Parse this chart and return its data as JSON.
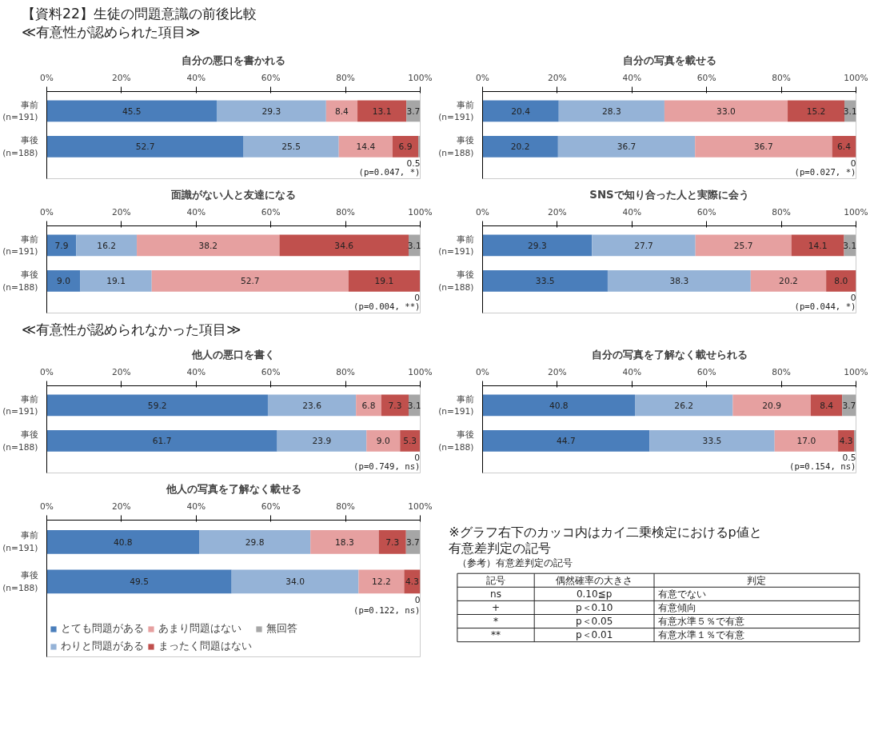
{
  "chart_data": [
    {
      "type": "other",
      "title": "【資料22】生徒の問題意識の前後比較",
      "annotations": [
        "≪有意性が認められた項目≫"
      ]
    },
    {
      "type": "bar",
      "orientation": "horizontal",
      "stacked": true,
      "title": "自分の悪口を書かれる",
      "categories": [
        "事前\n(n=191)",
        "事後\n(n=188)"
      ],
      "xlim": [
        0,
        100
      ],
      "xticks": [
        {
          "value": 0,
          "label": "0%"
        },
        {
          "value": 20,
          "label": "20%"
        },
        {
          "value": 40,
          "label": "40%"
        },
        {
          "value": 60,
          "label": "60%"
        },
        {
          "value": 80,
          "label": "80%"
        },
        {
          "value": 100,
          "label": "100%"
        }
      ],
      "annotations": [
        "(p=0.047, *)"
      ],
      "series": [
        {
          "color": "#4a7ebb",
          "values": [
            45.5,
            52.7
          ],
          "value_labels": [
            "45.5",
            "52.7"
          ]
        },
        {
          "color": "#95b3d7",
          "values": [
            29.3,
            25.5
          ],
          "value_labels": [
            "29.3",
            "25.5"
          ]
        },
        {
          "color": "#e6a0a0",
          "values": [
            8.4,
            14.4
          ],
          "value_labels": [
            "8.4",
            "14.4"
          ]
        },
        {
          "color": "#c0504d",
          "values": [
            13.1,
            6.9
          ],
          "value_labels": [
            "13.1",
            "6.9"
          ]
        },
        {
          "color": "#a6a6a6",
          "values": [
            3.7,
            0.5
          ],
          "value_labels": [
            "3.7",
            "0.5"
          ]
        }
      ]
    },
    {
      "type": "bar",
      "orientation": "horizontal",
      "stacked": true,
      "title": "自分の写真を載せる",
      "categories": [
        "事前\n(n=191)",
        "事後\n(n=188)"
      ],
      "xlim": [
        0,
        100
      ],
      "xticks": [
        {
          "value": 0,
          "label": "0%"
        },
        {
          "value": 20,
          "label": "20%"
        },
        {
          "value": 40,
          "label": "40%"
        },
        {
          "value": 60,
          "label": "60%"
        },
        {
          "value": 80,
          "label": "80%"
        },
        {
          "value": 100,
          "label": "100%"
        }
      ],
      "annotations": [
        "(p=0.027, *)"
      ],
      "series": [
        {
          "color": "#4a7ebb",
          "values": [
            20.4,
            20.2
          ],
          "value_labels": [
            "20.4",
            "20.2"
          ]
        },
        {
          "color": "#95b3d7",
          "values": [
            28.3,
            36.7
          ],
          "value_labels": [
            "28.3",
            "36.7"
          ]
        },
        {
          "color": "#e6a0a0",
          "values": [
            33.0,
            36.7
          ],
          "value_labels": [
            "33.0",
            "36.7"
          ]
        },
        {
          "color": "#c0504d",
          "values": [
            15.2,
            6.4
          ],
          "value_labels": [
            "15.2",
            "6.4"
          ]
        },
        {
          "color": "#a6a6a6",
          "values": [
            3.1,
            0
          ],
          "value_labels": [
            "3.1",
            "0"
          ]
        }
      ]
    },
    {
      "type": "bar",
      "orientation": "horizontal",
      "stacked": true,
      "title": "面識がない人と友達になる",
      "categories": [
        "事前\n(n=191)",
        "事後\n(n=188)"
      ],
      "xlim": [
        0,
        100
      ],
      "xticks": [
        {
          "value": 0,
          "label": "0%"
        },
        {
          "value": 20,
          "label": "20%"
        },
        {
          "value": 40,
          "label": "40%"
        },
        {
          "value": 60,
          "label": "60%"
        },
        {
          "value": 80,
          "label": "80%"
        },
        {
          "value": 100,
          "label": "100%"
        }
      ],
      "annotations": [
        "(p=0.004, **)"
      ],
      "series": [
        {
          "color": "#4a7ebb",
          "values": [
            7.9,
            9.0
          ],
          "value_labels": [
            "7.9",
            "9.0"
          ]
        },
        {
          "color": "#95b3d7",
          "values": [
            16.2,
            19.1
          ],
          "value_labels": [
            "16.2",
            "19.1"
          ]
        },
        {
          "color": "#e6a0a0",
          "values": [
            38.2,
            52.7
          ],
          "value_labels": [
            "38.2",
            "52.7"
          ]
        },
        {
          "color": "#c0504d",
          "values": [
            34.6,
            19.1
          ],
          "value_labels": [
            "34.6",
            "19.1"
          ]
        },
        {
          "color": "#a6a6a6",
          "values": [
            3.1,
            0
          ],
          "value_labels": [
            "3.1",
            "0"
          ]
        }
      ]
    },
    {
      "type": "bar",
      "orientation": "horizontal",
      "stacked": true,
      "title": "SNSで知り合った人と実際に会う",
      "categories": [
        "事前\n(n=191)",
        "事後\n(n=188)"
      ],
      "xlim": [
        0,
        100
      ],
      "xticks": [
        {
          "value": 0,
          "label": "0%"
        },
        {
          "value": 20,
          "label": "20%"
        },
        {
          "value": 40,
          "label": "40%"
        },
        {
          "value": 60,
          "label": "60%"
        },
        {
          "value": 80,
          "label": "80%"
        },
        {
          "value": 100,
          "label": "100%"
        }
      ],
      "annotations": [
        "(p=0.044, *)"
      ],
      "series": [
        {
          "color": "#4a7ebb",
          "values": [
            29.3,
            33.5
          ],
          "value_labels": [
            "29.3",
            "33.5"
          ]
        },
        {
          "color": "#95b3d7",
          "values": [
            27.7,
            38.3
          ],
          "value_labels": [
            "27.7",
            "38.3"
          ]
        },
        {
          "color": "#e6a0a0",
          "values": [
            25.7,
            20.2
          ],
          "value_labels": [
            "25.7",
            "20.2"
          ]
        },
        {
          "color": "#c0504d",
          "values": [
            14.1,
            8.0
          ],
          "value_labels": [
            "14.1",
            "8.0"
          ]
        },
        {
          "color": "#a6a6a6",
          "values": [
            3.1,
            0
          ],
          "value_labels": [
            "3.1",
            "0"
          ]
        }
      ]
    },
    {
      "type": "other",
      "annotations": [
        "≪有意性が認められなかった項目≫"
      ]
    },
    {
      "type": "bar",
      "orientation": "horizontal",
      "stacked": true,
      "title": "他人の悪口を書く",
      "categories": [
        "事前\n(n=191)",
        "事後\n(n=188)"
      ],
      "xlim": [
        0,
        100
      ],
      "xticks": [
        {
          "value": 0,
          "label": "0%"
        },
        {
          "value": 20,
          "label": "20%"
        },
        {
          "value": 40,
          "label": "40%"
        },
        {
          "value": 60,
          "label": "60%"
        },
        {
          "value": 80,
          "label": "80%"
        },
        {
          "value": 100,
          "label": "100%"
        }
      ],
      "annotations": [
        "(p=0.749, ns)"
      ],
      "series": [
        {
          "color": "#4a7ebb",
          "values": [
            59.2,
            61.7
          ],
          "value_labels": [
            "59.2",
            "61.7"
          ]
        },
        {
          "color": "#95b3d7",
          "values": [
            23.6,
            23.9
          ],
          "value_labels": [
            "23.6",
            "23.9"
          ]
        },
        {
          "color": "#e6a0a0",
          "values": [
            6.8,
            9.0
          ],
          "value_labels": [
            "6.8",
            "9.0"
          ]
        },
        {
          "color": "#c0504d",
          "values": [
            7.3,
            5.3
          ],
          "value_labels": [
            "7.3",
            "5.3"
          ]
        },
        {
          "color": "#a6a6a6",
          "values": [
            3.1,
            0
          ],
          "value_labels": [
            "3.1",
            "0"
          ]
        }
      ]
    },
    {
      "type": "bar",
      "orientation": "horizontal",
      "stacked": true,
      "title": "自分の写真を了解なく載せられる",
      "categories": [
        "事前\n(n=191)",
        "事後\n(n=188)"
      ],
      "xlim": [
        0,
        100
      ],
      "xticks": [
        {
          "value": 0,
          "label": "0%"
        },
        {
          "value": 20,
          "label": "20%"
        },
        {
          "value": 40,
          "label": "40%"
        },
        {
          "value": 60,
          "label": "60%"
        },
        {
          "value": 80,
          "label": "80%"
        },
        {
          "value": 100,
          "label": "100%"
        }
      ],
      "annotations": [
        "(p=0.154, ns)"
      ],
      "series": [
        {
          "color": "#4a7ebb",
          "values": [
            40.8,
            44.7
          ],
          "value_labels": [
            "40.8",
            "44.7"
          ]
        },
        {
          "color": "#95b3d7",
          "values": [
            26.2,
            33.5
          ],
          "value_labels": [
            "26.2",
            "33.5"
          ]
        },
        {
          "color": "#e6a0a0",
          "values": [
            20.9,
            17.0
          ],
          "value_labels": [
            "20.9",
            "17.0"
          ]
        },
        {
          "color": "#c0504d",
          "values": [
            8.4,
            4.3
          ],
          "value_labels": [
            "8.4",
            "4.3"
          ]
        },
        {
          "color": "#a6a6a6",
          "values": [
            3.7,
            0.5
          ],
          "value_labels": [
            "3.7",
            "0.5"
          ]
        }
      ]
    },
    {
      "type": "bar",
      "orientation": "horizontal",
      "stacked": true,
      "title": "他人の写真を了解なく載せる",
      "categories": [
        "事前\n(n=191)",
        "事後\n(n=188)"
      ],
      "xlim": [
        0,
        100
      ],
      "xticks": [
        {
          "value": 0,
          "label": "0%"
        },
        {
          "value": 20,
          "label": "20%"
        },
        {
          "value": 40,
          "label": "40%"
        },
        {
          "value": 60,
          "label": "60%"
        },
        {
          "value": 80,
          "label": "80%"
        },
        {
          "value": 100,
          "label": "100%"
        }
      ],
      "annotations": [
        "(p=0.122, ns)"
      ],
      "legend": "bottom",
      "series": [
        {
          "name": "とても問題がある",
          "color": "#4a7ebb",
          "values": [
            40.8,
            49.5
          ],
          "value_labels": [
            "40.8",
            "49.5"
          ]
        },
        {
          "name": "わりと問題がある",
          "color": "#95b3d7",
          "values": [
            29.8,
            34.0
          ],
          "value_labels": [
            "29.8",
            "34.0"
          ]
        },
        {
          "name": "あまり問題はない",
          "color": "#e6a0a0",
          "values": [
            18.3,
            12.2
          ],
          "value_labels": [
            "18.3",
            "12.2"
          ]
        },
        {
          "name": "まったく問題はない",
          "color": "#c0504d",
          "values": [
            7.3,
            4.3
          ],
          "value_labels": [
            "7.3",
            "4.3"
          ]
        },
        {
          "name": "無回答",
          "color": "#a6a6a6",
          "values": [
            3.7,
            0
          ],
          "value_labels": [
            "3.7",
            "0"
          ]
        }
      ]
    },
    {
      "type": "other",
      "title": "※グラフ右下のカッコ内はカイ二乗検定におけるp値と有意差判定の記号",
      "subtitle": "（参考）有意差判定の記号",
      "annotations": [
        "記号",
        "偶然確率の大きさ",
        "判定",
        "ns",
        "0.10≦p",
        "有意でない",
        "+",
        "p＜0.10",
        "有意傾向",
        "*",
        "p＜0.05",
        "有意水準５％で有意",
        "**",
        "p＜0.01",
        "有意水準１％で有意"
      ]
    }
  ]
}
